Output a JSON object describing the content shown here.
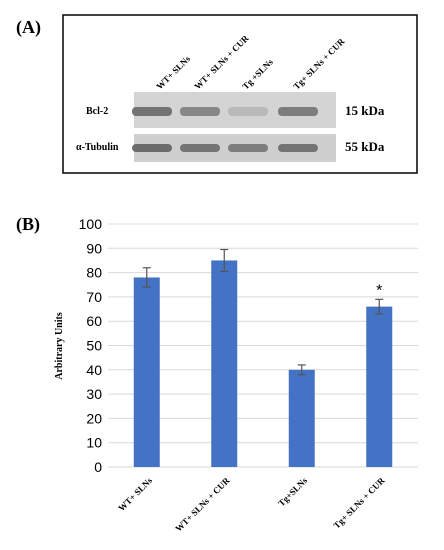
{
  "panel_a": {
    "label": "(A)",
    "lane_labels": [
      "WT+ SLNs",
      "WT+ SLNs + CUR",
      "Tg +SLNs",
      "Tg+ SLNs + CUR"
    ],
    "rows": [
      {
        "protein": "Bcl-2",
        "size": "15 kDa",
        "band_darkness": [
          0.55,
          0.45,
          0.15,
          0.5
        ]
      },
      {
        "protein": "α-Tubulin",
        "size": "55 kDa",
        "band_darkness": [
          0.6,
          0.55,
          0.5,
          0.55
        ]
      }
    ]
  },
  "panel_b": {
    "label": "(B)"
  },
  "chart_data": {
    "type": "bar",
    "categories": [
      "WT+ SLNs",
      "WT+ SLNs + CUR",
      "Tg+SLNs",
      "Tg+ SLNs + CUR"
    ],
    "values": [
      78,
      85,
      40,
      66
    ],
    "errors": [
      4,
      4.5,
      2,
      3
    ],
    "annotations": [
      "",
      "",
      "",
      "*"
    ],
    "ylabel": "Arbitrary Units",
    "xlabel": "",
    "ylim": [
      0,
      100
    ],
    "yticks": [
      0,
      10,
      20,
      30,
      40,
      50,
      60,
      70,
      80,
      90,
      100
    ],
    "grid": true,
    "bar_color": "#4472c4"
  }
}
